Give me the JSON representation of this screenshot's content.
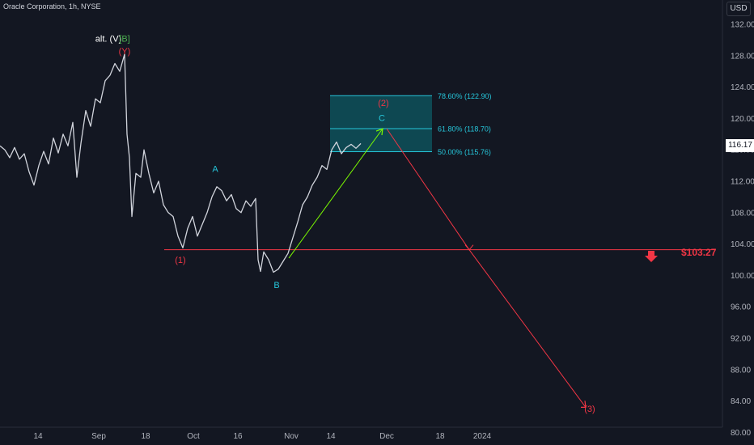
{
  "header": {
    "symbol_line": "Oracle Corporation, 1h, NYSE",
    "currency": "USD"
  },
  "colors": {
    "background": "#131722",
    "price": "#d1d4dc",
    "wave_red": "#f23645",
    "wave_cyan": "#26c6da",
    "wave_green": "#4caf50",
    "zone_fill": "#0e5a63",
    "zone_line": "#26c6da",
    "projection_up": "#7cfc00",
    "projection_down": "#f23645"
  },
  "chart_data": {
    "type": "line",
    "ylim": [
      80,
      134
    ],
    "y_ticks": [
      "132.00",
      "128.00",
      "124.00",
      "120.00",
      "116.00",
      "112.00",
      "108.00",
      "104.00",
      "100.00",
      "96.00",
      "92.00",
      "88.00",
      "84.00",
      "80.00"
    ],
    "x_ticks": [
      "14",
      "Sep",
      "18",
      "Oct",
      "16",
      "Nov",
      "14",
      "Dec",
      "18",
      "2024"
    ],
    "last_price": "116.17",
    "price_path": [
      [
        0,
        116.5
      ],
      [
        6,
        116
      ],
      [
        12,
        115
      ],
      [
        18,
        116.3
      ],
      [
        24,
        114.8
      ],
      [
        30,
        115.5
      ],
      [
        36,
        113.2
      ],
      [
        42,
        111.5
      ],
      [
        48,
        114
      ],
      [
        54,
        115.8
      ],
      [
        60,
        114.2
      ],
      [
        66,
        117.5
      ],
      [
        72,
        115.6
      ],
      [
        78,
        118
      ],
      [
        84,
        116.5
      ],
      [
        90,
        119.5
      ],
      [
        95,
        112.5
      ],
      [
        100,
        116.8
      ],
      [
        106,
        121
      ],
      [
        112,
        119
      ],
      [
        118,
        122.5
      ],
      [
        124,
        122
      ],
      [
        130,
        124.8
      ],
      [
        136,
        125.5
      ],
      [
        142,
        127
      ],
      [
        148,
        126
      ],
      [
        154,
        128.2
      ],
      [
        157,
        118
      ],
      [
        160,
        115
      ],
      [
        163,
        107.5
      ],
      [
        168,
        113
      ],
      [
        174,
        112.5
      ],
      [
        178,
        116
      ],
      [
        184,
        113
      ],
      [
        190,
        110.5
      ],
      [
        196,
        112
      ],
      [
        202,
        109
      ],
      [
        208,
        108
      ],
      [
        214,
        107.5
      ],
      [
        220,
        105
      ],
      [
        226,
        103.5
      ],
      [
        232,
        106
      ],
      [
        238,
        107.5
      ],
      [
        244,
        105
      ],
      [
        250,
        106.5
      ],
      [
        256,
        108
      ],
      [
        262,
        110
      ],
      [
        268,
        111.3
      ],
      [
        274,
        110.8
      ],
      [
        280,
        109.5
      ],
      [
        286,
        110.3
      ],
      [
        292,
        108.5
      ],
      [
        298,
        108
      ],
      [
        304,
        109.5
      ],
      [
        310,
        108.8
      ],
      [
        316,
        109.8
      ],
      [
        319,
        102
      ],
      [
        322,
        100.5
      ],
      [
        326,
        103
      ],
      [
        332,
        102
      ],
      [
        338,
        100.4
      ],
      [
        344,
        100.8
      ],
      [
        350,
        101.8
      ],
      [
        356,
        102.8
      ],
      [
        362,
        104.8
      ],
      [
        368,
        106.8
      ],
      [
        374,
        109
      ],
      [
        380,
        110
      ],
      [
        386,
        111.5
      ],
      [
        392,
        112.5
      ],
      [
        398,
        114
      ],
      [
        404,
        113.5
      ],
      [
        410,
        116
      ],
      [
        416,
        117
      ],
      [
        422,
        115.5
      ],
      [
        428,
        116.3
      ],
      [
        434,
        116.7
      ],
      [
        440,
        116.2
      ],
      [
        446,
        116.8
      ]
    ],
    "fib_levels": [
      {
        "label": "78.60% (122.90)",
        "value": 122.9
      },
      {
        "label": "61.80% (118.70)",
        "value": 118.7
      },
      {
        "label": "50.00% (115.76)",
        "value": 115.76
      }
    ],
    "support_level": 103.27,
    "target_label": "$103.27",
    "projection_up": [
      [
        357,
        102.2
      ],
      [
        473,
        118.7
      ]
    ],
    "projection_down": [
      [
        478,
        118.7
      ],
      [
        580,
        103.27
      ],
      [
        724,
        83.2
      ]
    ],
    "wave_labels": [
      {
        "text": "alt. (V)",
        "color": "white",
        "x": 134,
        "y": 129.8
      },
      {
        "text": "[B]",
        "color": "green",
        "x": 154,
        "y": 129.8
      },
      {
        "text": "(Y)",
        "color": "red",
        "x": 154,
        "y": 128.2
      },
      {
        "text": "A",
        "color": "cyan",
        "x": 266,
        "y": 113.2
      },
      {
        "text": "(1)",
        "color": "red",
        "x": 223,
        "y": 101.6
      },
      {
        "text": "B",
        "color": "cyan",
        "x": 342,
        "y": 98.4
      },
      {
        "text": "(2)",
        "color": "red",
        "x": 474,
        "y": 121.6
      },
      {
        "text": "C",
        "color": "cyan",
        "x": 472,
        "y": 119.7
      },
      {
        "text": "(3)",
        "color": "red",
        "x": 729,
        "y": 82.6
      }
    ]
  }
}
